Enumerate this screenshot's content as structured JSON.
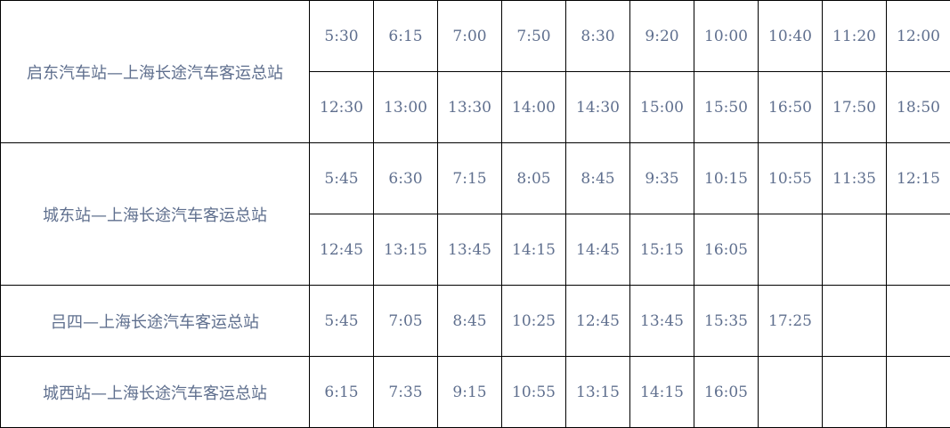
{
  "colors": {
    "text": "#5f6f8e",
    "border": "#000000"
  },
  "routes": [
    {
      "name": "启东汽车站—上海长途汽车客运总站",
      "rows": [
        [
          "5:30",
          "6:15",
          "7:00",
          "7:50",
          "8:30",
          "9:20",
          "10:00",
          "10:40",
          "11:20",
          "12:00"
        ],
        [
          "12:30",
          "13:00",
          "13:30",
          "14:00",
          "14:30",
          "15:00",
          "15:50",
          "16:50",
          "17:50",
          "18:50"
        ]
      ]
    },
    {
      "name": "城东站—上海长途汽车客运总站",
      "rows": [
        [
          "5:45",
          "6:30",
          "7:15",
          "8:05",
          "8:45",
          "9:35",
          "10:15",
          "10:55",
          "11:35",
          "12:15"
        ],
        [
          "12:45",
          "13:15",
          "13:45",
          "14:15",
          "14:45",
          "15:15",
          "16:05",
          "",
          "",
          ""
        ]
      ]
    },
    {
      "name": "吕四—上海长途汽车客运总站",
      "rows": [
        [
          "5:45",
          "7:05",
          "8:45",
          "10:25",
          "12:45",
          "13:45",
          "15:35",
          "17:25",
          "",
          ""
        ]
      ]
    },
    {
      "name": "城西站—上海长途汽车客运总站",
      "rows": [
        [
          "6:15",
          "7:35",
          "9:15",
          "10:55",
          "13:15",
          "14:15",
          "16:05",
          "",
          "",
          ""
        ]
      ]
    }
  ]
}
